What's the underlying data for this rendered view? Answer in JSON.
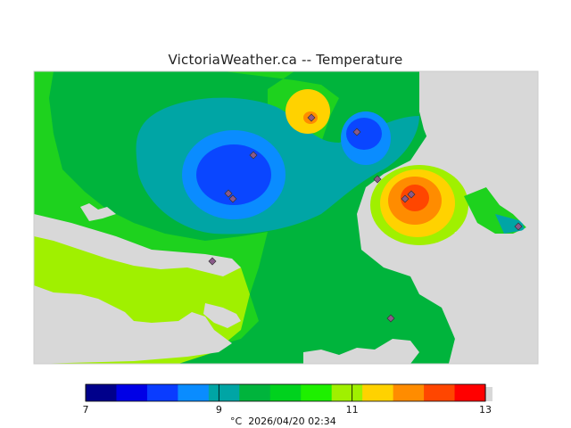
{
  "title": "VictoriaWeather.ca -- Temperature",
  "legend": {
    "colors": [
      "#00008b",
      "#0000e6",
      "#0a3cff",
      "#0a8cff",
      "#00a5a5",
      "#00b43c",
      "#00d21e",
      "#1ef000",
      "#a0f000",
      "#ffd200",
      "#ff8c00",
      "#ff4600",
      "#ff0000"
    ],
    "ticks": [
      {
        "label": "7",
        "value": 7
      },
      {
        "label": "9",
        "value": 9
      },
      {
        "label": "11",
        "value": 11
      },
      {
        "label": "13",
        "value": 13
      }
    ],
    "min": 7,
    "max": 13
  },
  "footer": {
    "units": "°C",
    "timestamp": "2026/04/20 02:34"
  },
  "colors": {
    "background_gray": "#d8d8d8",
    "land_default": "#00c23a",
    "water_ocean": "#00b43c"
  }
}
